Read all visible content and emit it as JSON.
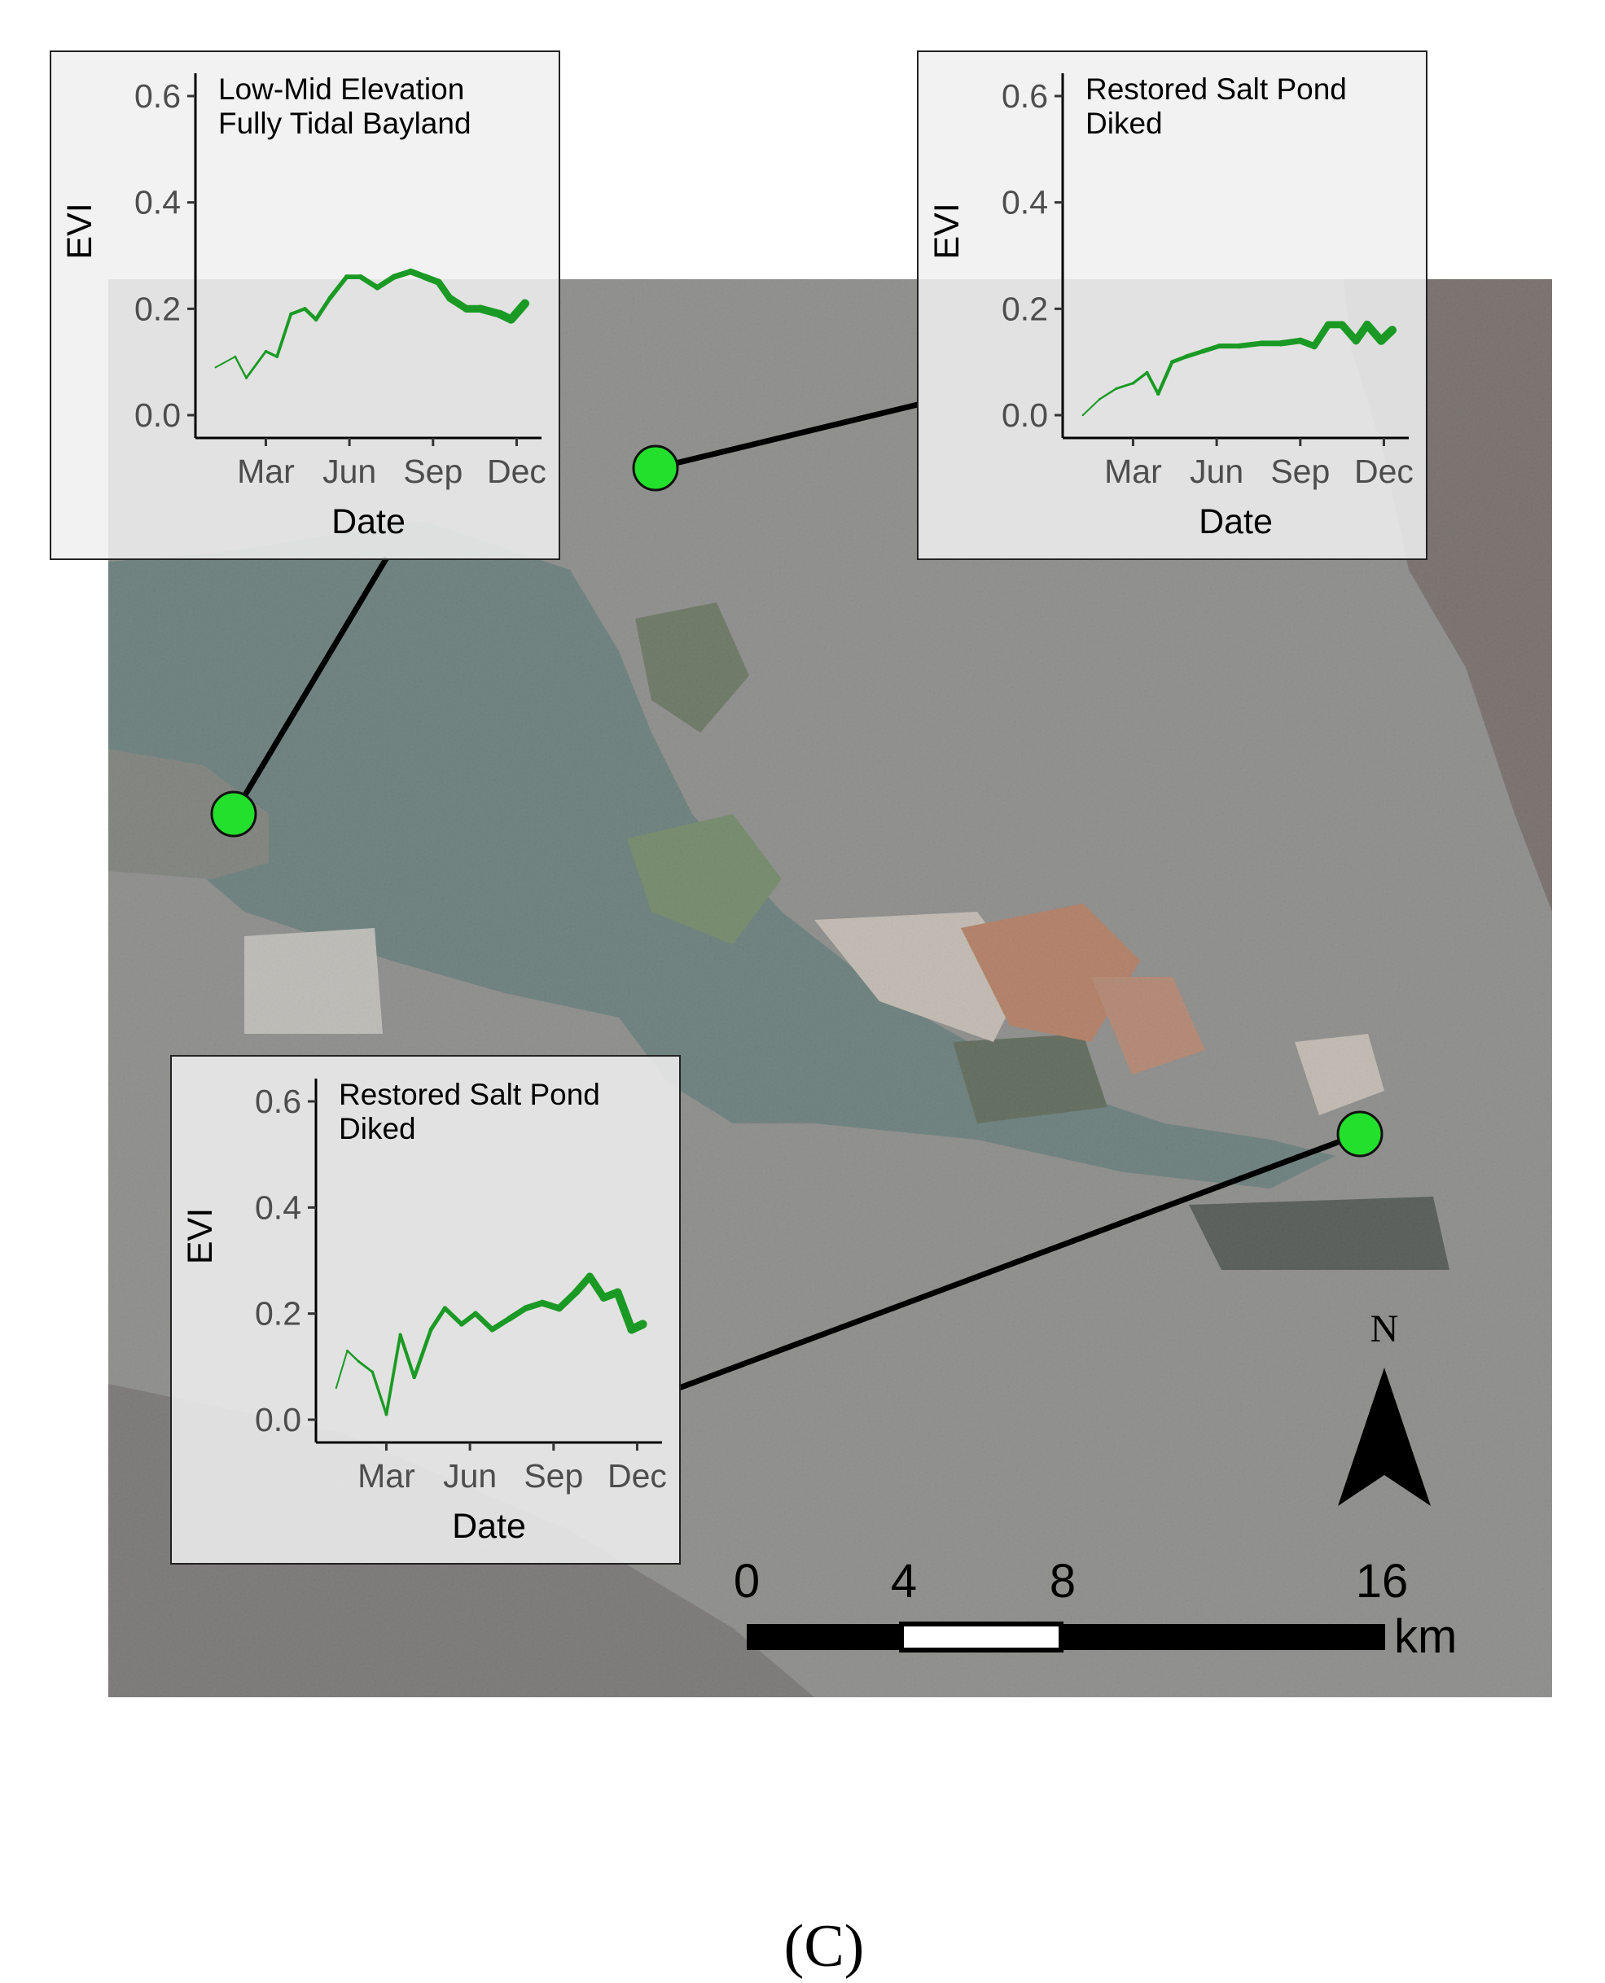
{
  "figure": {
    "panel_caption": "(C)"
  },
  "map": {
    "scale_bar": {
      "labels": [
        "0",
        "4",
        "8",
        "16"
      ],
      "unit": "km"
    },
    "north_arrow": {
      "label": "N",
      "icon": "north-arrow-icon"
    },
    "site_marker_color": "#22e02c",
    "water_color": "#5e7b78"
  },
  "chart_data": [
    {
      "type": "line",
      "title": "Low-Mid Elevation\nFully Tidal Bayland",
      "title_lines": [
        "Low-Mid Elevation",
        "Fully Tidal Bayland"
      ],
      "xlabel": "Date",
      "ylabel": "EVI",
      "xticks": [
        "Mar",
        "Jun",
        "Sep",
        "Dec"
      ],
      "ylim": [
        0.0,
        0.6
      ],
      "yticks": [
        "0.0",
        "0.2",
        "0.4",
        "0.6"
      ],
      "line_color": "#1a9a24",
      "series": [
        {
          "x_months": [
            0.2,
            0.9,
            1.3,
            2.0,
            2.4,
            2.9,
            3.4,
            3.8,
            4.3,
            4.9,
            5.4,
            6.0,
            6.6,
            7.2,
            7.7,
            8.2,
            8.6,
            9.2,
            9.7,
            10.4,
            10.8,
            11.3
          ],
          "values": [
            0.09,
            0.11,
            0.07,
            0.12,
            0.11,
            0.19,
            0.2,
            0.18,
            0.22,
            0.26,
            0.26,
            0.24,
            0.26,
            0.27,
            0.26,
            0.25,
            0.22,
            0.2,
            0.2,
            0.19,
            0.18,
            0.21
          ]
        }
      ],
      "grid": false
    },
    {
      "type": "line",
      "title": "Restored Salt Pond\nDiked",
      "title_lines": [
        "Restored Salt Pond",
        "Diked"
      ],
      "xlabel": "Date",
      "ylabel": "EVI",
      "xticks": [
        "Mar",
        "Jun",
        "Sep",
        "Dec"
      ],
      "ylim": [
        0.0,
        0.6
      ],
      "yticks": [
        "0.0",
        "0.2",
        "0.4",
        "0.6"
      ],
      "line_color": "#1a9a24",
      "series": [
        {
          "x_months": [
            0.2,
            0.8,
            1.4,
            2.0,
            2.5,
            2.9,
            3.4,
            3.9,
            4.5,
            5.1,
            5.8,
            6.6,
            7.3,
            8.0,
            8.5,
            9.0,
            9.5,
            10.0,
            10.4,
            10.9,
            11.3
          ],
          "values": [
            0.0,
            0.03,
            0.05,
            0.06,
            0.08,
            0.04,
            0.1,
            0.11,
            0.12,
            0.13,
            0.13,
            0.135,
            0.135,
            0.14,
            0.13,
            0.17,
            0.17,
            0.14,
            0.17,
            0.14,
            0.16
          ]
        }
      ],
      "grid": false
    },
    {
      "type": "line",
      "title": "Restored Salt Pond\nDiked",
      "title_lines": [
        "Restored Salt Pond",
        "Diked"
      ],
      "xlabel": "Date",
      "ylabel": "EVI",
      "xticks": [
        "Mar",
        "Jun",
        "Sep",
        "Dec"
      ],
      "ylim": [
        0.0,
        0.6
      ],
      "yticks": [
        "0.0",
        "0.2",
        "0.4",
        "0.6"
      ],
      "line_color": "#1a9a24",
      "series": [
        {
          "x_months": [
            0.2,
            0.6,
            1.0,
            1.5,
            2.0,
            2.5,
            3.0,
            3.6,
            4.1,
            4.7,
            5.2,
            5.8,
            6.4,
            7.0,
            7.6,
            8.2,
            8.8,
            9.3,
            9.8,
            10.3,
            10.8,
            11.2
          ],
          "values": [
            0.06,
            0.13,
            0.11,
            0.09,
            0.01,
            0.16,
            0.08,
            0.17,
            0.21,
            0.18,
            0.2,
            0.17,
            0.19,
            0.21,
            0.22,
            0.21,
            0.24,
            0.27,
            0.23,
            0.24,
            0.17,
            0.18
          ]
        }
      ],
      "grid": false
    }
  ]
}
